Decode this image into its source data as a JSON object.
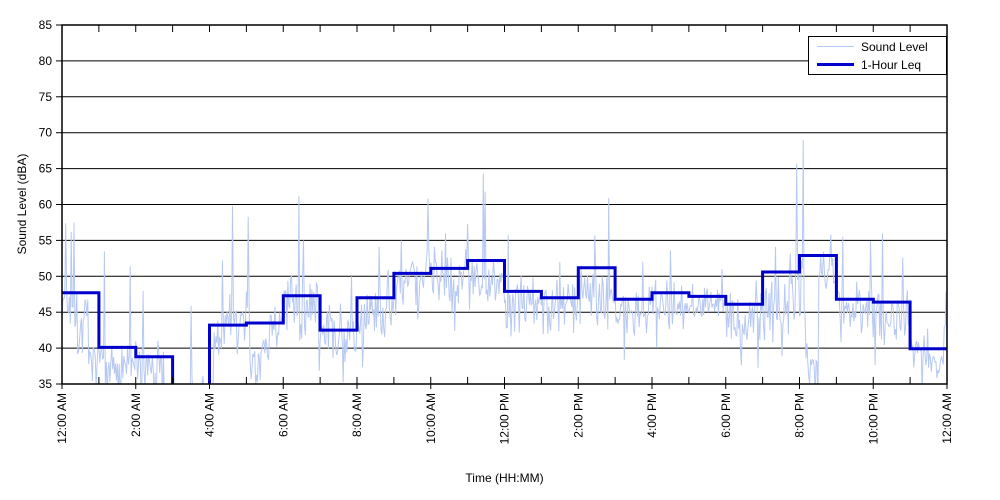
{
  "chart": {
    "title": "",
    "xlabel": "Time (HH:MM)",
    "ylabel": "Sound Level (dBA)",
    "legend": {
      "items": [
        {
          "label": "Sound Level",
          "color": "#b7c9f2",
          "line_width": 1
        },
        {
          "label": "1-Hour Leq",
          "color": "#0000cd",
          "line_width": 3
        }
      ],
      "position": "top-right"
    }
  },
  "chart_data": {
    "type": "line",
    "title": "",
    "xlabel": "Time (HH:MM)",
    "ylabel": "Sound Level (dBA)",
    "xlim_hours": [
      0,
      24
    ],
    "ylim": [
      35,
      85
    ],
    "ytick_step": 5,
    "ytick_labels": [
      "35",
      "40",
      "45",
      "50",
      "55",
      "60",
      "65",
      "70",
      "75",
      "80",
      "85"
    ],
    "xtick_every_hours": 2,
    "xtick_labels": [
      "12:00 AM",
      "2:00 AM",
      "4:00 AM",
      "6:00 AM",
      "8:00 AM",
      "10:00 AM",
      "12:00 PM",
      "2:00 PM",
      "4:00 PM",
      "6:00 PM",
      "8:00 PM",
      "10:00 PM",
      "12:00 AM"
    ],
    "grid": "horizontal black gridlines every 5 dBA, box on, hourly minor ticks inside top and bottom edges",
    "legend_position": "top-right",
    "series": [
      {
        "name": "1-Hour Leq",
        "kind": "step-hourly",
        "color": "#0000cd",
        "hourly_values_dBA": [
          47.7,
          40.1,
          38.8,
          34.0,
          43.2,
          43.5,
          47.3,
          42.5,
          47.0,
          50.4,
          51.1,
          52.2,
          47.9,
          47.0,
          51.2,
          46.8,
          47.7,
          47.2,
          46.1,
          50.6,
          52.9,
          46.8,
          46.4,
          39.9
        ],
        "note": "hour 3 (3:00-4:00 AM) value falls below the 35 dBA axis minimum and is clipped off-chart"
      },
      {
        "name": "Sound Level",
        "kind": "noisy-raw",
        "color": "#b7c9f2",
        "envelope_segments": [
          [
            0.0,
            0.35,
            46.5,
            2.5
          ],
          [
            0.35,
            0.75,
            43.5,
            3.0
          ],
          [
            0.75,
            1.1,
            39.5,
            2.5
          ],
          [
            1.1,
            2.0,
            37.5,
            2.2
          ],
          [
            2.0,
            2.75,
            37.8,
            2.4
          ],
          [
            2.75,
            4.1,
            33.0,
            2.0
          ],
          [
            4.1,
            4.4,
            41.0,
            2.5
          ],
          [
            4.4,
            5.1,
            44.5,
            2.2
          ],
          [
            5.1,
            5.65,
            38.8,
            2.2
          ],
          [
            5.65,
            6.0,
            44.5,
            2.2
          ],
          [
            6.0,
            7.0,
            45.5,
            3.0
          ],
          [
            7.0,
            8.0,
            42.3,
            2.6
          ],
          [
            8.0,
            9.0,
            46.0,
            3.0
          ],
          [
            9.0,
            10.0,
            49.5,
            2.8
          ],
          [
            10.0,
            11.0,
            50.3,
            2.6
          ],
          [
            11.0,
            12.0,
            50.0,
            2.8
          ],
          [
            12.0,
            13.0,
            47.3,
            2.6
          ],
          [
            13.0,
            14.0,
            46.0,
            2.4
          ],
          [
            14.0,
            15.0,
            47.5,
            3.0
          ],
          [
            15.0,
            16.0,
            45.5,
            2.4
          ],
          [
            16.0,
            17.0,
            46.5,
            2.4
          ],
          [
            17.0,
            18.0,
            46.3,
            2.0
          ],
          [
            18.0,
            18.7,
            43.3,
            2.6
          ],
          [
            18.7,
            19.7,
            45.5,
            3.0
          ],
          [
            19.7,
            20.15,
            49.0,
            4.0
          ],
          [
            20.15,
            20.5,
            40.0,
            3.0
          ],
          [
            20.5,
            21.0,
            51.0,
            2.5
          ],
          [
            21.0,
            22.0,
            45.5,
            2.2
          ],
          [
            22.0,
            23.0,
            44.8,
            2.4
          ],
          [
            23.0,
            23.5,
            40.0,
            2.0
          ],
          [
            23.5,
            23.92,
            37.6,
            1.4
          ],
          [
            23.92,
            24.0,
            43.0,
            3.0
          ]
        ],
        "spikes": [
          [
            0.1,
            57.4
          ],
          [
            0.25,
            56.2
          ],
          [
            0.33,
            57.5
          ],
          [
            1.15,
            53.5
          ],
          [
            1.85,
            51.4
          ],
          [
            2.2,
            48.0
          ],
          [
            3.5,
            45.9
          ],
          [
            4.35,
            52.2
          ],
          [
            4.63,
            59.8
          ],
          [
            5.05,
            58.3
          ],
          [
            6.43,
            61.2
          ],
          [
            6.55,
            55.0
          ],
          [
            7.85,
            50.0
          ],
          [
            8.6,
            54.1
          ],
          [
            9.2,
            55.0
          ],
          [
            9.92,
            60.8
          ],
          [
            10.4,
            56.0
          ],
          [
            11.0,
            57.3
          ],
          [
            11.43,
            64.3
          ],
          [
            11.48,
            61.8
          ],
          [
            12.1,
            55.7
          ],
          [
            13.5,
            52.0
          ],
          [
            14.45,
            55.7
          ],
          [
            14.83,
            60.9
          ],
          [
            15.75,
            52.0
          ],
          [
            16.5,
            53.6
          ],
          [
            17.9,
            51.0
          ],
          [
            19.35,
            54.1
          ],
          [
            19.93,
            65.7
          ],
          [
            20.09,
            69.0
          ],
          [
            20.85,
            55.8
          ],
          [
            21.17,
            55.5
          ],
          [
            21.92,
            54.9
          ],
          [
            22.25,
            56.0
          ],
          [
            22.8,
            52.6
          ],
          [
            23.97,
            47.9
          ]
        ]
      }
    ]
  },
  "colors": {
    "background": "#ffffff",
    "gridline": "#000000",
    "axis_box": "#000000",
    "raw_line": "#b7c9f2",
    "leq_line": "#0000cd"
  }
}
